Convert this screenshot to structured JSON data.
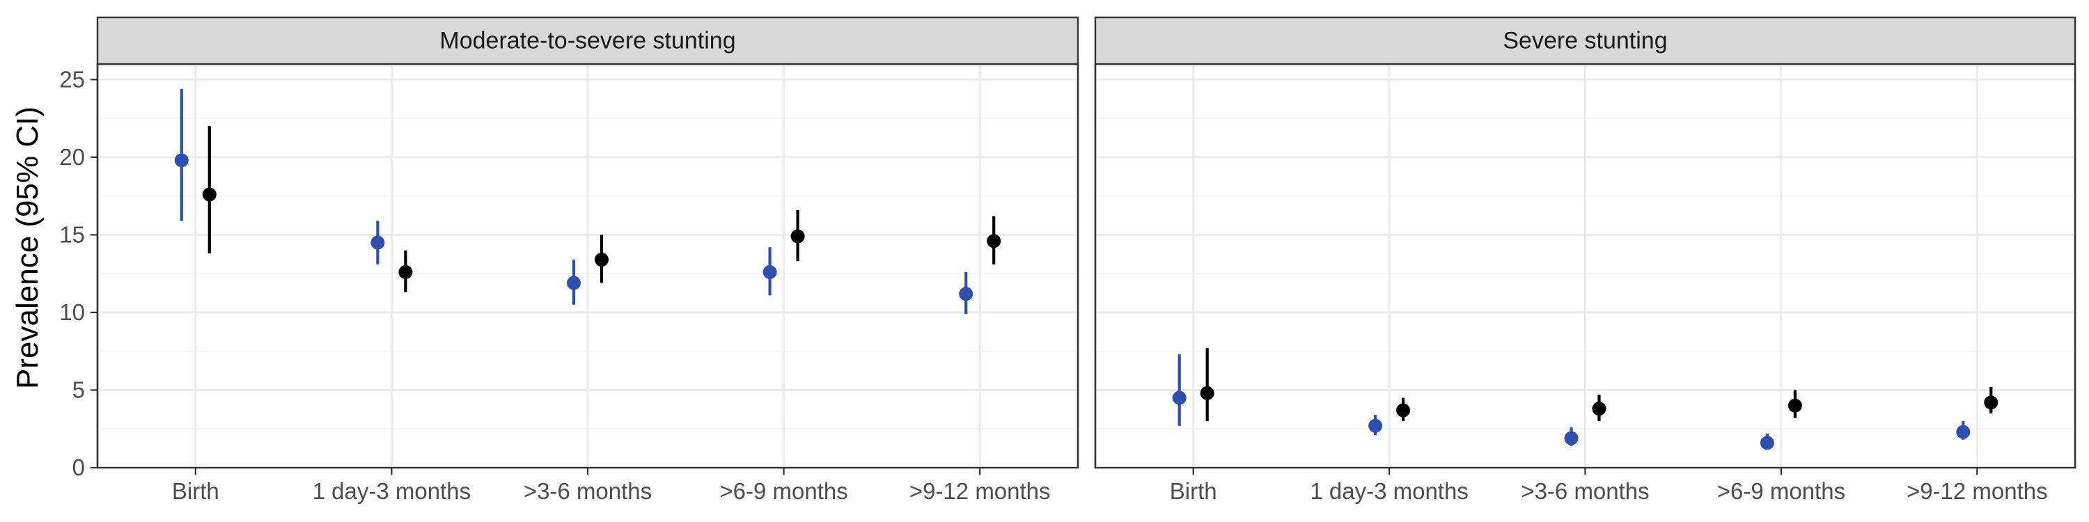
{
  "colors": {
    "series_blue": "#2f4fb0",
    "series_black": "#000000",
    "strip_fill": "#d9d9d9",
    "panel_border": "#333333"
  },
  "chart_data": {
    "type": "scatter",
    "subtype": "pointrange",
    "ylabel": "Prevalence (95% CI)",
    "xlabel": "",
    "ylim": [
      0,
      26
    ],
    "yticks": [
      0,
      5,
      10,
      15,
      20,
      25
    ],
    "grid": true,
    "legend": "none",
    "categories": [
      "Birth",
      "1 day-3 months",
      ">3-6 months",
      ">6-9 months",
      ">9-12 months"
    ],
    "panels": [
      {
        "title": "Moderate-to-severe stunting",
        "series": [
          {
            "color": "#2f4fb0",
            "values": [
              19.8,
              14.5,
              11.9,
              12.6,
              11.2
            ],
            "lower": [
              15.9,
              13.1,
              10.5,
              11.1,
              9.9
            ],
            "upper": [
              24.4,
              15.9,
              13.4,
              14.2,
              12.6
            ]
          },
          {
            "color": "#000000",
            "values": [
              17.6,
              12.6,
              13.4,
              14.9,
              14.6
            ],
            "lower": [
              13.8,
              11.3,
              11.9,
              13.3,
              13.1
            ],
            "upper": [
              22.0,
              14.0,
              15.0,
              16.6,
              16.2
            ]
          }
        ]
      },
      {
        "title": "Severe stunting",
        "series": [
          {
            "color": "#2f4fb0",
            "values": [
              4.5,
              2.7,
              1.9,
              1.6,
              2.3
            ],
            "lower": [
              2.7,
              2.1,
              1.4,
              1.2,
              1.8
            ],
            "upper": [
              7.3,
              3.4,
              2.6,
              2.2,
              3.0
            ]
          },
          {
            "color": "#000000",
            "values": [
              4.8,
              3.7,
              3.8,
              4.0,
              4.2
            ],
            "lower": [
              3.0,
              3.0,
              3.0,
              3.2,
              3.5
            ],
            "upper": [
              7.7,
              4.5,
              4.7,
              5.0,
              5.2
            ]
          }
        ]
      }
    ]
  }
}
